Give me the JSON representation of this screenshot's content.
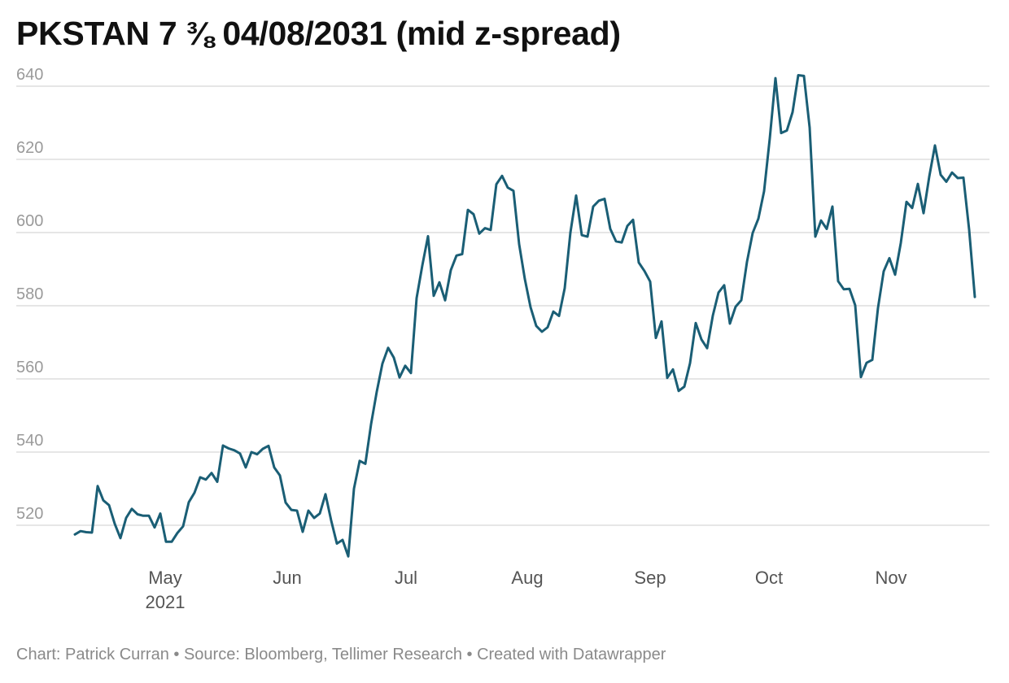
{
  "chart_data": {
    "type": "line",
    "title": "PKSTAN 7 ⅜ 04/08/2031 (mid z-spread)",
    "xlabel": "",
    "ylabel": "",
    "ylim": [
      508,
      643
    ],
    "y_ticks": [
      520,
      540,
      560,
      580,
      600,
      620,
      640
    ],
    "x_ticks": [
      {
        "label": "May",
        "sub": "2021"
      },
      {
        "label": "Jun",
        "sub": ""
      },
      {
        "label": "Jul",
        "sub": ""
      },
      {
        "label": "Aug",
        "sub": ""
      },
      {
        "label": "Sep",
        "sub": ""
      },
      {
        "label": "Oct",
        "sub": ""
      },
      {
        "label": "Nov",
        "sub": ""
      }
    ],
    "grid": true,
    "line_color": "#1a5e75",
    "series": [
      {
        "name": "mid z-spread",
        "values": [
          517.5,
          518.4,
          518.1,
          518.0,
          530.7,
          526.8,
          525.5,
          520.4,
          516.5,
          522.0,
          524.5,
          523.0,
          522.6,
          522.6,
          519.4,
          523.2,
          515.5,
          515.5,
          517.9,
          519.7,
          526.3,
          528.9,
          533.1,
          532.5,
          534.3,
          531.9,
          541.8,
          541.0,
          540.5,
          539.6,
          535.8,
          540.0,
          539.4,
          540.9,
          541.7,
          535.8,
          533.6,
          526.2,
          524.2,
          524.0,
          518.2,
          524.0,
          522.0,
          523.2,
          528.5,
          521.3,
          515.0,
          516.0,
          511.5,
          530.0,
          537.6,
          536.8,
          547.6,
          556.5,
          564.2,
          568.5,
          565.8,
          560.4,
          563.6,
          561.6,
          582.1,
          591.0,
          599.0,
          582.7,
          586.4,
          581.5,
          589.7,
          593.7,
          594.1,
          606.2,
          605.0,
          599.7,
          601.2,
          600.7,
          613.2,
          615.5,
          612.3,
          611.4,
          596.8,
          587.3,
          579.6,
          574.5,
          572.9,
          574.1,
          578.4,
          577.2,
          584.8,
          600.0,
          610.1,
          599.3,
          598.9,
          607.1,
          608.7,
          609.2,
          601.0,
          597.6,
          597.3,
          601.8,
          603.5,
          591.8,
          589.5,
          586.6,
          571.2,
          575.7,
          560.3,
          562.6,
          556.7,
          557.9,
          564.3,
          575.3,
          570.8,
          568.4,
          577.3,
          583.6,
          585.6,
          575.1,
          579.7,
          581.5,
          592.0,
          599.9,
          603.8,
          611.3,
          625.7,
          642.2,
          627.2,
          627.9,
          632.9,
          643.0,
          642.8,
          628.7,
          598.9,
          603.3,
          601.0,
          607.1,
          586.7,
          584.5,
          584.6,
          580.1,
          560.5,
          564.4,
          565.2,
          579.4,
          589.4,
          593.0,
          588.5,
          597.1,
          608.4,
          606.7,
          613.3,
          605.3,
          615.3,
          623.8,
          615.8,
          613.9,
          616.4,
          614.9,
          615.0,
          600.8,
          582.4
        ]
      }
    ]
  },
  "footer": {
    "text": "Chart: Patrick Curran • Source: Bloomberg, Tellimer Research • Created with Datawrapper"
  }
}
